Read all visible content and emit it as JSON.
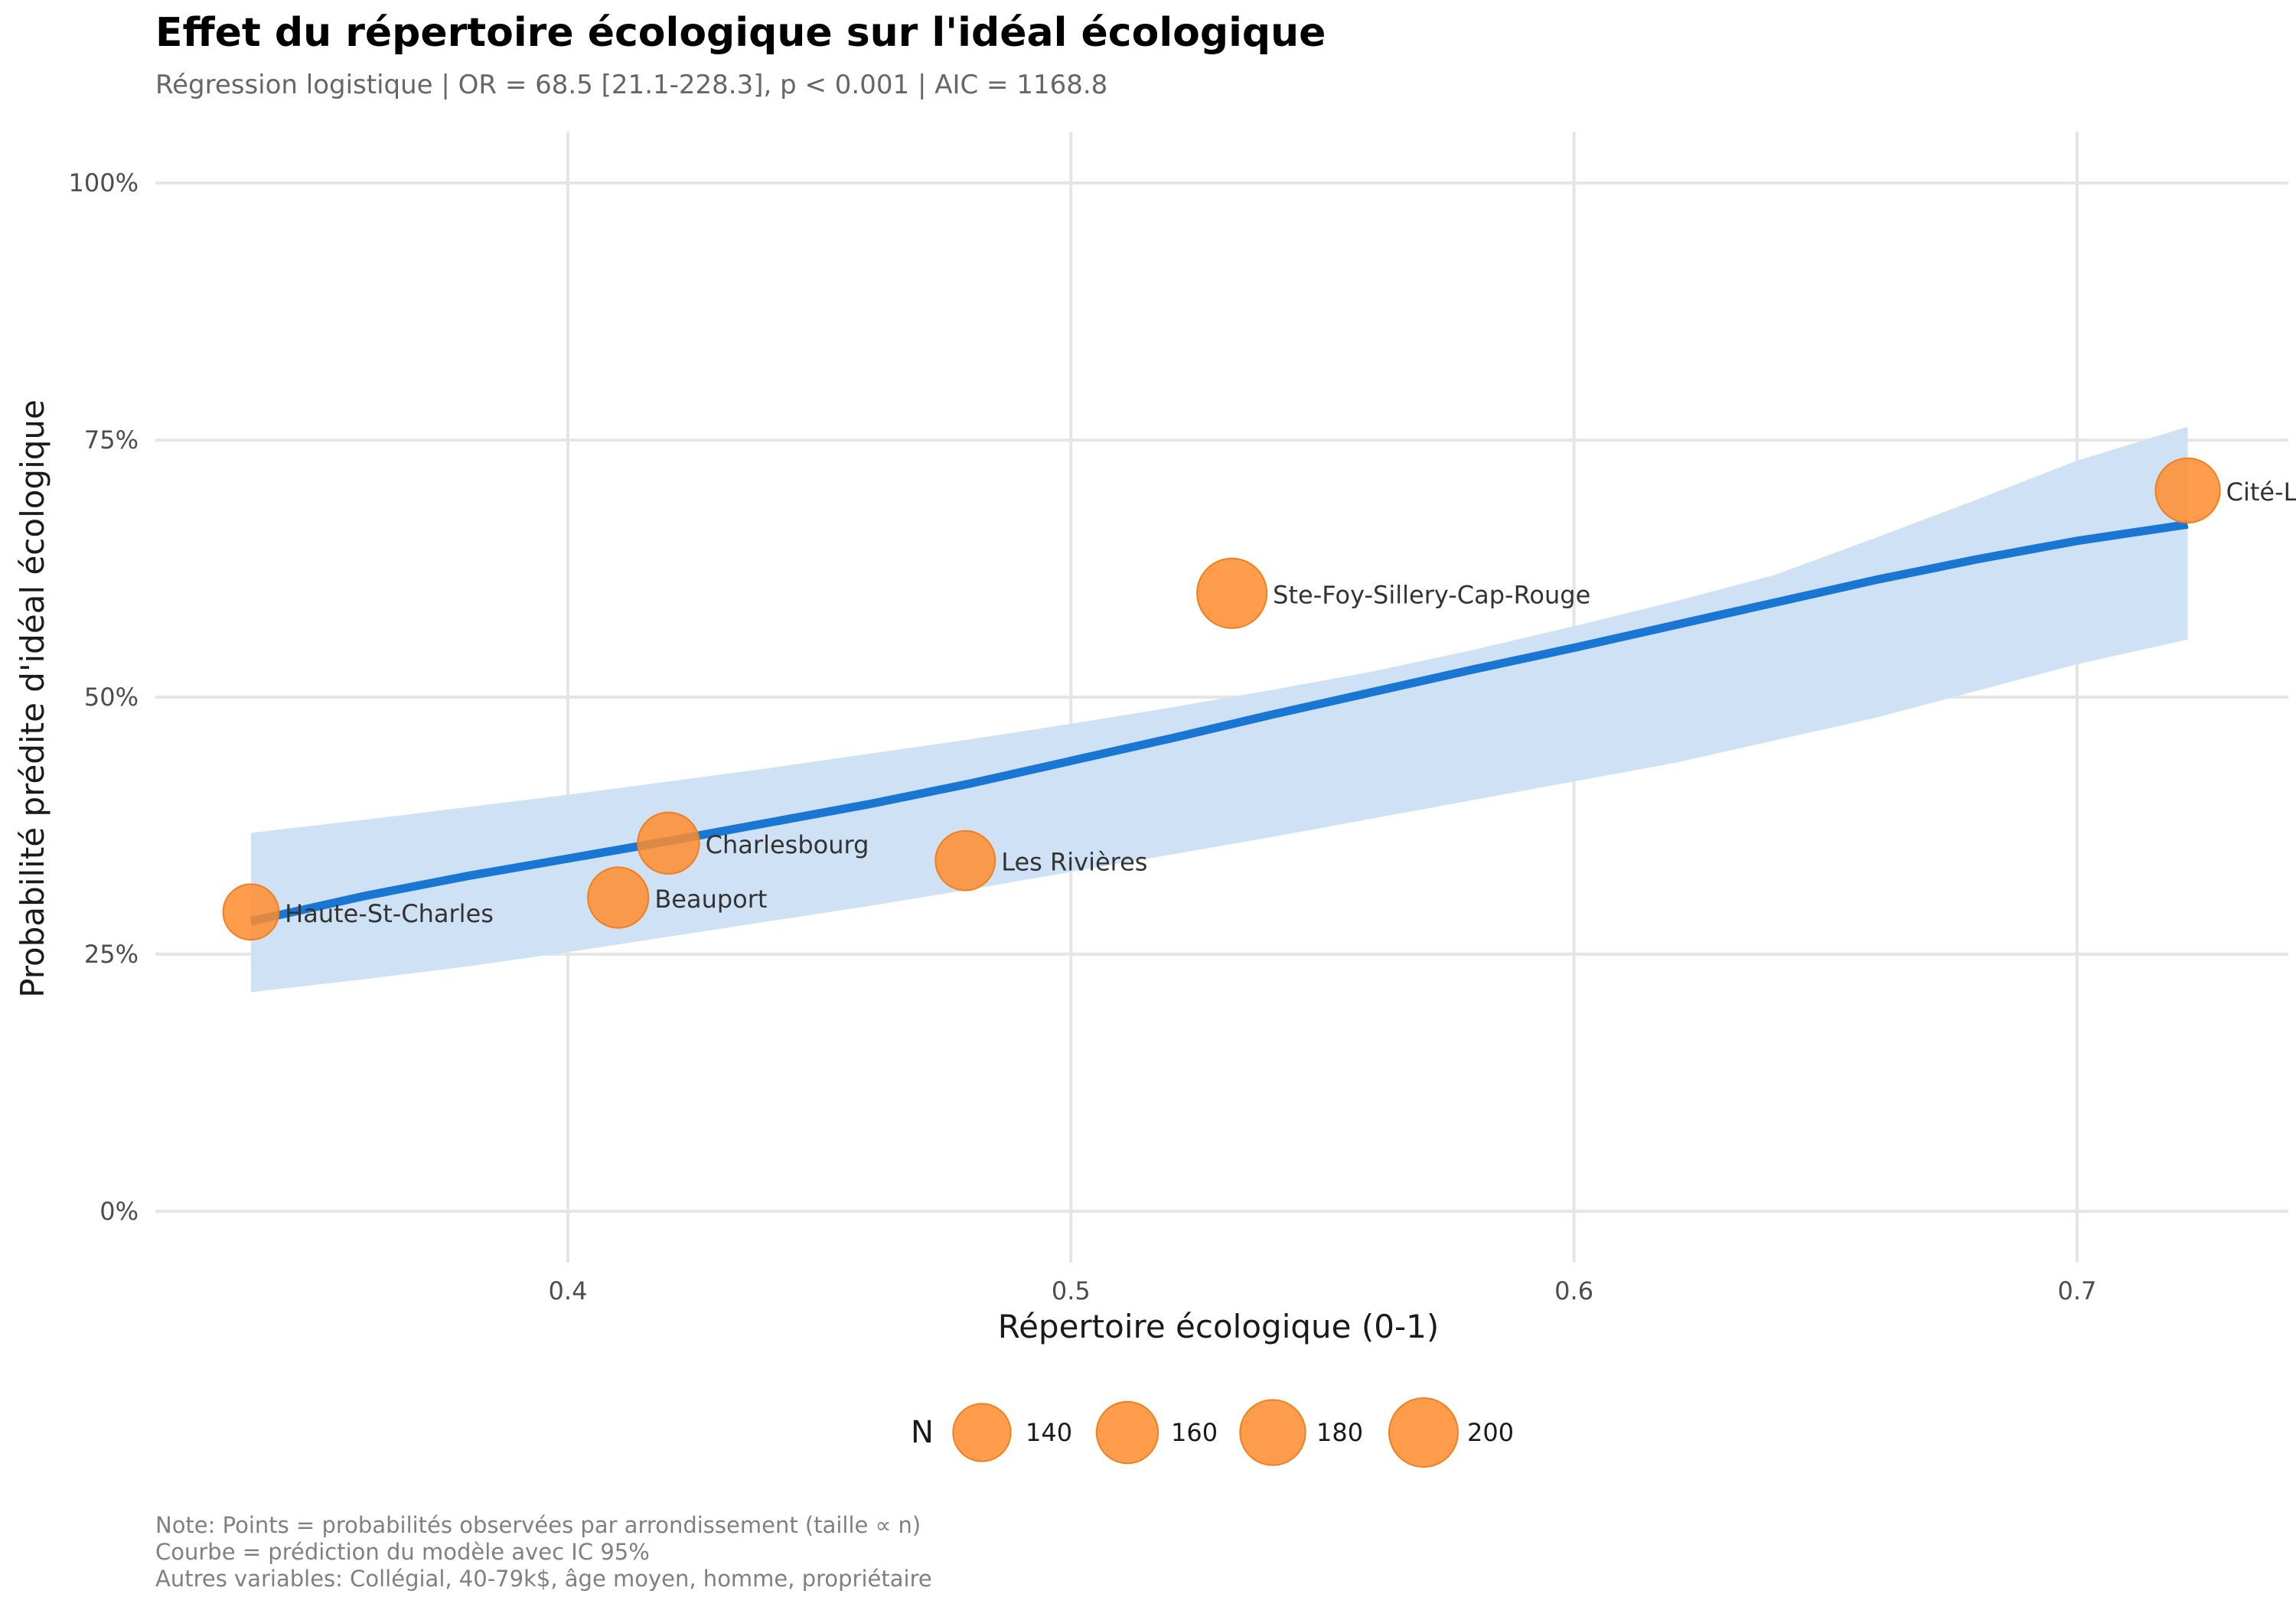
{
  "colors": {
    "band": "#cfe1f4",
    "curve": "#1976d2",
    "points": "#ff8c2e",
    "points_stroke": "#f07f1f",
    "grid": "#e5e5e5"
  },
  "chart_data": {
    "type": "scatter",
    "title": "Effet du répertoire écologique sur l'idéal écologique",
    "subtitle": "Régression logistique | OR = 68.5 [21.1-228.3], p < 0.001 | AIC = 1168.8",
    "xlabel": "Répertoire écologique (0-1)",
    "ylabel": "Probabilité prédite d'idéal écologique",
    "xlim": [
      0.318,
      0.742
    ],
    "ylim": [
      -0.05,
      1.05
    ],
    "x_ticks": [
      0.4,
      0.5,
      0.6,
      0.7
    ],
    "x_tick_labels": [
      "0.4",
      "0.5",
      "0.6",
      "0.7"
    ],
    "y_ticks": [
      0,
      0.25,
      0.5,
      0.75,
      1
    ],
    "y_tick_labels": [
      "0%",
      "25%",
      "50%",
      "75%",
      "100%"
    ],
    "grid": true,
    "points": [
      {
        "label": "Haute-St-Charles",
        "x": 0.337,
        "y": 0.291,
        "n": 130
      },
      {
        "label": "Beauport",
        "x": 0.41,
        "y": 0.305,
        "n": 155
      },
      {
        "label": "Charlesbourg",
        "x": 0.42,
        "y": 0.358,
        "n": 160
      },
      {
        "label": "Les Rivières",
        "x": 0.479,
        "y": 0.341,
        "n": 150
      },
      {
        "label": "Ste-Foy-Sillery-Cap-Rouge",
        "x": 0.532,
        "y": 0.601,
        "n": 205
      },
      {
        "label": "Cité-L",
        "x": 0.722,
        "y": 0.701,
        "n": 175
      }
    ],
    "curve": {
      "name": "prediction",
      "x": [
        0.337,
        0.36,
        0.38,
        0.4,
        0.42,
        0.44,
        0.46,
        0.48,
        0.5,
        0.52,
        0.54,
        0.56,
        0.58,
        0.6,
        0.62,
        0.64,
        0.66,
        0.68,
        0.7,
        0.722
      ],
      "y": [
        0.282,
        0.307,
        0.326,
        0.343,
        0.36,
        0.378,
        0.396,
        0.416,
        0.438,
        0.46,
        0.483,
        0.505,
        0.527,
        0.548,
        0.57,
        0.592,
        0.614,
        0.634,
        0.652,
        0.668
      ],
      "lower": [
        0.213,
        0.226,
        0.238,
        0.252,
        0.267,
        0.282,
        0.297,
        0.313,
        0.33,
        0.347,
        0.364,
        0.382,
        0.4,
        0.418,
        0.436,
        0.458,
        0.48,
        0.506,
        0.532,
        0.556
      ],
      "upper": [
        0.368,
        0.381,
        0.393,
        0.405,
        0.418,
        0.431,
        0.445,
        0.459,
        0.474,
        0.49,
        0.507,
        0.525,
        0.546,
        0.569,
        0.593,
        0.619,
        0.655,
        0.692,
        0.73,
        0.763
      ]
    },
    "legend": {
      "title": "N",
      "placement": "bottom",
      "values": [
        140,
        160,
        180,
        200
      ],
      "labels": [
        "140",
        "160",
        "180",
        "200"
      ]
    },
    "caption_lines": [
      "Note: Points = probabilités observées par arrondissement (taille ∝ n)",
      "Courbe = prédiction du modèle avec IC 95%",
      "Autres variables: Collégial, 40-79k$, âge moyen, homme, propriétaire"
    ]
  }
}
